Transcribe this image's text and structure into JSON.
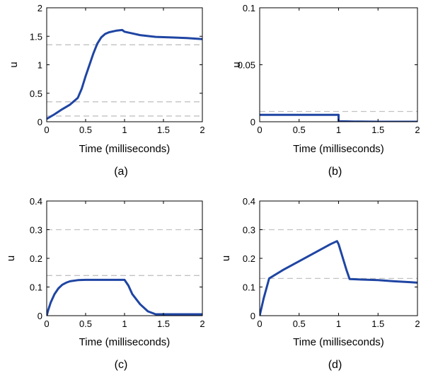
{
  "chart_data": [
    {
      "type": "line",
      "panel_label": "(a)",
      "xlabel": "Time (milliseconds)",
      "ylabel": "u",
      "xlim": [
        0,
        2
      ],
      "ylim": [
        0,
        2
      ],
      "xticks": [
        "0",
        "0.5",
        "1",
        "1.5",
        "2"
      ],
      "yticks": [
        "0",
        "0.5",
        "1",
        "1.5",
        "2"
      ],
      "ytick_values": [
        0,
        0.5,
        1,
        1.5,
        2
      ],
      "thresholds": [
        0.1,
        0.35,
        1.35
      ],
      "series": [
        {
          "color": "#1f45a3",
          "x": [
            0,
            0.1,
            0.2,
            0.3,
            0.4,
            0.45,
            0.5,
            0.55,
            0.6,
            0.65,
            0.7,
            0.75,
            0.8,
            0.9,
            0.97,
            1.0,
            1.1,
            1.2,
            1.4,
            1.6,
            1.8,
            2.0
          ],
          "y": [
            0.05,
            0.13,
            0.22,
            0.3,
            0.42,
            0.58,
            0.8,
            1.0,
            1.2,
            1.37,
            1.48,
            1.54,
            1.57,
            1.6,
            1.61,
            1.58,
            1.55,
            1.52,
            1.49,
            1.48,
            1.47,
            1.45
          ]
        }
      ]
    },
    {
      "type": "line",
      "panel_label": "(b)",
      "xlabel": "Time (milliseconds)",
      "ylabel": "u",
      "xlim": [
        0,
        2
      ],
      "ylim": [
        0,
        0.1
      ],
      "xticks": [
        "0",
        "0.5",
        "1",
        "1.5",
        "2"
      ],
      "yticks": [
        "0",
        "0.05",
        "0.1"
      ],
      "ytick_values": [
        0,
        0.05,
        0.1
      ],
      "thresholds": [
        0.009
      ],
      "series": [
        {
          "color": "#1f45a3",
          "x": [
            0,
            1.0,
            1.0,
            1.2,
            1.5,
            2.0
          ],
          "y": [
            0.006,
            0.006,
            0.0005,
            0.0002,
            0.0,
            0.0
          ]
        }
      ]
    },
    {
      "type": "line",
      "panel_label": "(c)",
      "xlabel": "Time (milliseconds)",
      "ylabel": "u",
      "xlim": [
        0,
        2
      ],
      "ylim": [
        0,
        0.4
      ],
      "xticks": [
        "0",
        "0.5",
        "1",
        "1.5",
        "2"
      ],
      "yticks": [
        "0",
        "0.1",
        "0.2",
        "0.3",
        "0.4"
      ],
      "ytick_values": [
        0,
        0.1,
        0.2,
        0.3,
        0.4
      ],
      "thresholds": [
        0.14,
        0.3
      ],
      "series": [
        {
          "color": "#1f45a3",
          "x": [
            0,
            0.02,
            0.05,
            0.1,
            0.15,
            0.2,
            0.25,
            0.3,
            0.4,
            0.5,
            0.7,
            1.0,
            1.05,
            1.1,
            1.2,
            1.3,
            1.4,
            1.5,
            1.7,
            2.0
          ],
          "y": [
            0.0,
            0.02,
            0.045,
            0.075,
            0.095,
            0.108,
            0.115,
            0.12,
            0.124,
            0.125,
            0.125,
            0.125,
            0.105,
            0.075,
            0.04,
            0.015,
            0.005,
            0.005,
            0.005,
            0.005
          ]
        }
      ]
    },
    {
      "type": "line",
      "panel_label": "(d)",
      "xlabel": "Time (milliseconds)",
      "ylabel": "u",
      "xlim": [
        0,
        2
      ],
      "ylim": [
        0,
        0.4
      ],
      "xticks": [
        "0",
        "0.5",
        "1",
        "1.5",
        "2"
      ],
      "yticks": [
        "0",
        "0.1",
        "0.2",
        "0.3",
        "0.4"
      ],
      "ytick_values": [
        0,
        0.1,
        0.2,
        0.3,
        0.4
      ],
      "thresholds": [
        0.13,
        0.3
      ],
      "series": [
        {
          "color": "#1f45a3",
          "x": [
            0,
            0.05,
            0.12,
            0.3,
            0.5,
            0.7,
            0.9,
            0.98,
            1.0,
            1.1,
            1.14,
            1.3,
            1.5,
            1.7,
            1.9,
            2.0
          ],
          "y": [
            0.0,
            0.06,
            0.13,
            0.16,
            0.19,
            0.22,
            0.25,
            0.26,
            0.25,
            0.16,
            0.128,
            0.126,
            0.124,
            0.12,
            0.117,
            0.115
          ]
        }
      ]
    }
  ]
}
